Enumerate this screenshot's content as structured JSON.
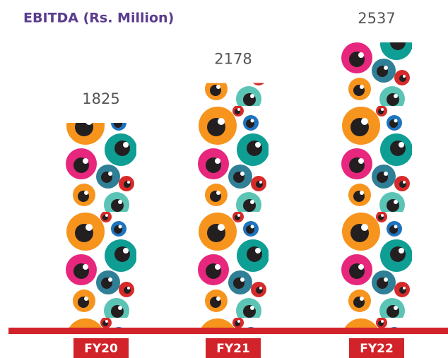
{
  "chart_data": {
    "type": "bar",
    "title": "EBITDA (Rs. Million)",
    "categories": [
      "FY20",
      "FY21",
      "FY22"
    ],
    "values": [
      1825,
      2178,
      2537
    ]
  }
}
